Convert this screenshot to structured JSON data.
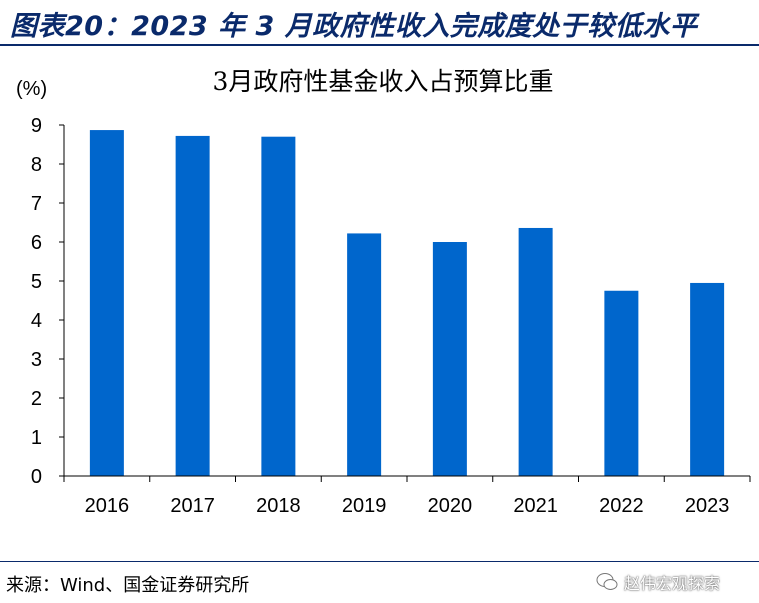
{
  "header": {
    "title": "图表20：2023 年 3 月政府性收入完成度处于较低水平"
  },
  "source": {
    "text": "来源：Wind、国金证券研究所"
  },
  "watermark": {
    "text": "赵伟宏观探索",
    "icon": "wechat-icon"
  },
  "colors": {
    "bar": "#0066CC",
    "header": "#0a2a6b"
  },
  "chart_data": {
    "type": "bar",
    "title": "3月政府性基金收入占预算比重",
    "ylabel": "(%)",
    "xlabel": "",
    "categories": [
      "2016",
      "2017",
      "2018",
      "2019",
      "2020",
      "2021",
      "2022",
      "2023"
    ],
    "values": [
      8.87,
      8.72,
      8.7,
      6.22,
      6.0,
      6.36,
      4.75,
      4.95
    ],
    "ylim": [
      0,
      9
    ],
    "yticks": [
      0,
      1,
      2,
      3,
      4,
      5,
      6,
      7,
      8,
      9
    ],
    "grid": false,
    "legend": "none"
  }
}
